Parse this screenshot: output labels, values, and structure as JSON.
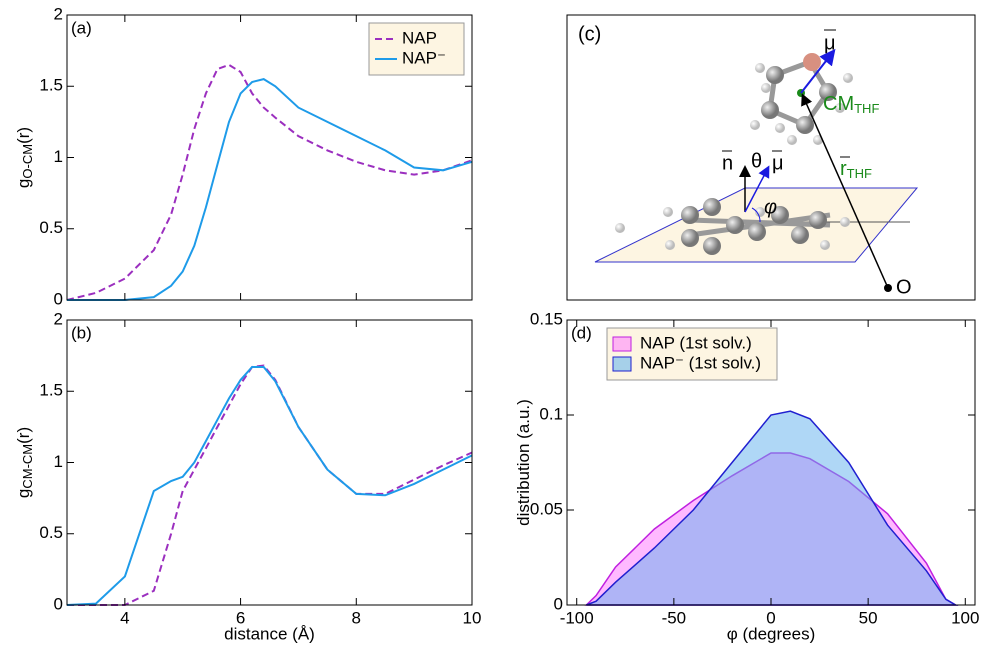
{
  "chart_data": [
    {
      "type": "line",
      "panel_label": "(a)",
      "ylabel": "g",
      "ylabel_sub": "O-CM",
      "ylabel_suffix": "(r)",
      "x": [
        3,
        3.5,
        4,
        4.5,
        4.8,
        5,
        5.2,
        5.4,
        5.6,
        5.8,
        6,
        6.2,
        6.4,
        6.6,
        7,
        7.5,
        8,
        8.5,
        9,
        9.5,
        10
      ],
      "series": [
        {
          "name": "NAP",
          "color": "#9b2fbf",
          "dash": true,
          "values": [
            0,
            0.05,
            0.15,
            0.35,
            0.6,
            0.88,
            1.2,
            1.45,
            1.62,
            1.65,
            1.6,
            1.45,
            1.35,
            1.28,
            1.15,
            1.05,
            0.97,
            0.91,
            0.88,
            0.91,
            0.98
          ]
        },
        {
          "name": "NAP⁻",
          "color": "#1e9be9",
          "dash": false,
          "values": [
            0,
            0,
            0,
            0.02,
            0.1,
            0.2,
            0.38,
            0.65,
            0.95,
            1.25,
            1.45,
            1.53,
            1.55,
            1.5,
            1.35,
            1.25,
            1.15,
            1.05,
            0.93,
            0.91,
            0.97
          ]
        }
      ],
      "xlim": [
        3,
        10
      ],
      "ylim": [
        0,
        2
      ],
      "xticks": [
        4,
        6,
        8,
        10
      ],
      "show_xtick_labels": false,
      "yticks": [
        0,
        0.5,
        1,
        1.5,
        2
      ],
      "legend": "upper right"
    },
    {
      "type": "line",
      "panel_label": "(b)",
      "ylabel": "g",
      "ylabel_sub": "CM-CM",
      "ylabel_suffix": "(r)",
      "xlabel": "distance (Å)",
      "x": [
        3,
        3.5,
        4,
        4.5,
        4.8,
        5,
        5.2,
        5.4,
        5.6,
        5.8,
        6,
        6.2,
        6.4,
        6.6,
        7,
        7.5,
        8,
        8.5,
        9,
        9.5,
        10
      ],
      "series": [
        {
          "name": "NAP",
          "color": "#9b2fbf",
          "dash": true,
          "values": [
            0,
            0,
            0,
            0.1,
            0.5,
            0.8,
            0.95,
            1.1,
            1.25,
            1.4,
            1.55,
            1.67,
            1.68,
            1.58,
            1.25,
            0.95,
            0.78,
            0.78,
            0.88,
            0.98,
            1.07
          ]
        },
        {
          "name": "NAP⁻",
          "color": "#1e9be9",
          "dash": false,
          "values": [
            0,
            0.01,
            0.2,
            0.8,
            0.87,
            0.9,
            1.0,
            1.15,
            1.3,
            1.45,
            1.58,
            1.67,
            1.67,
            1.57,
            1.25,
            0.95,
            0.78,
            0.77,
            0.85,
            0.95,
            1.05
          ]
        }
      ],
      "xlim": [
        3,
        10
      ],
      "ylim": [
        0,
        2
      ],
      "xticks": [
        4,
        6,
        8,
        10
      ],
      "yticks": [
        0,
        0.5,
        1,
        1.5,
        2
      ]
    },
    {
      "type": "diagram",
      "panel_label": "(c)",
      "labels": [
        {
          "text": "μ"
        },
        {
          "text": "CM",
          "sub": "THF"
        },
        {
          "text": "n"
        },
        {
          "text": "θ"
        },
        {
          "text": "μ"
        },
        {
          "text": "r",
          "sub": "THF"
        },
        {
          "text": "φ"
        },
        {
          "text": "O"
        }
      ]
    },
    {
      "type": "area",
      "panel_label": "(d)",
      "ylabel": "distribution (a.u.)",
      "xlabel": "φ (degrees)",
      "x": [
        -95,
        -90,
        -80,
        -60,
        -40,
        -20,
        0,
        10,
        20,
        40,
        60,
        80,
        90,
        95
      ],
      "series": [
        {
          "name": "NAP  (1st solv.)",
          "color": "#c020e0",
          "fill": "#ff80ff",
          "values": [
            0,
            0.005,
            0.02,
            0.04,
            0.055,
            0.068,
            0.08,
            0.08,
            0.077,
            0.065,
            0.048,
            0.022,
            0.003,
            0
          ]
        },
        {
          "name": "NAP⁻ (1st solv.)",
          "color": "#2020d0",
          "fill": "#5fb0ee",
          "values": [
            0,
            0.002,
            0.012,
            0.03,
            0.05,
            0.075,
            0.1,
            0.102,
            0.098,
            0.075,
            0.042,
            0.018,
            0.003,
            0
          ]
        }
      ],
      "xlim": [
        -105,
        105
      ],
      "ylim": [
        0,
        0.15
      ],
      "xticks": [
        -100,
        -50,
        0,
        50,
        100
      ],
      "yticks": [
        0,
        0.05,
        0.1,
        0.15
      ],
      "legend": "upper left"
    }
  ]
}
